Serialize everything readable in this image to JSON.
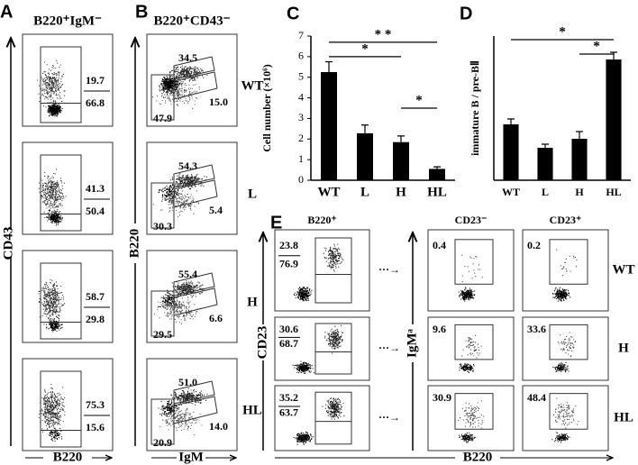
{
  "panel_labels": [
    "A",
    "B",
    "C",
    "D",
    "E"
  ],
  "A": {
    "title": "B220⁺IgM⁻",
    "y_axis": "CD43",
    "x_axis": "B220",
    "gates": [
      [
        "19.7",
        "66.8"
      ],
      [
        "41.3",
        "50.4"
      ],
      [
        "58.7",
        "29.8"
      ],
      [
        "75.3",
        "15.6"
      ]
    ]
  },
  "B": {
    "title": "B220⁺CD43⁻",
    "y_axis": "B220",
    "x_axis": "IgM",
    "gates": [
      [
        "34.5",
        "47.9",
        "15.0"
      ],
      [
        "54.3",
        "30.3",
        "5.4"
      ],
      [
        "55.4",
        "29.5",
        "6.6"
      ],
      [
        "51.0",
        "20.9",
        "14.0"
      ]
    ],
    "rows": [
      "WT",
      "L",
      "H",
      "HL"
    ]
  },
  "chart_data": [
    {
      "type": "bar",
      "y_label": "Cell number (×10⁶)",
      "categories": [
        "WT",
        "L",
        "H",
        "HL"
      ],
      "values": [
        5.25,
        2.28,
        1.85,
        0.55
      ],
      "errors": [
        0.5,
        0.4,
        0.3,
        0.1
      ],
      "color": "#000000",
      "ylim": [
        0,
        7
      ],
      "yticks": [
        0,
        1,
        2,
        3,
        4,
        5,
        6,
        7
      ],
      "annotations": [
        "* *",
        "*",
        "*"
      ]
    },
    {
      "type": "bar",
      "y_label": "immature B / pre-BⅡ",
      "categories": [
        "WT",
        "L",
        "H",
        "HL"
      ],
      "values": [
        0.31,
        0.18,
        0.23,
        0.67
      ],
      "errors": [
        0.03,
        0.02,
        0.04,
        0.04
      ],
      "color": "#000000",
      "ylim": [
        0,
        0.8
      ],
      "annotations": [
        "*",
        "*"
      ]
    }
  ],
  "E": {
    "columns": [
      "B220⁺",
      "CD23⁻",
      "CD23⁺"
    ],
    "rows": [
      "WT",
      "H",
      "HL"
    ],
    "y_axis_left": "CD23",
    "y_axis_right": "IgMᵃ",
    "x_axis": "B220",
    "arrow": "···→",
    "col1_gates": [
      [
        "23.8",
        "76.9"
      ],
      [
        "30.6",
        "68.7"
      ],
      [
        "35.2",
        "63.7"
      ]
    ],
    "col2_gates": [
      "0.4",
      "9.6",
      "30.9"
    ],
    "col3_gates": [
      "0.2",
      "33.6",
      "48.4"
    ]
  }
}
